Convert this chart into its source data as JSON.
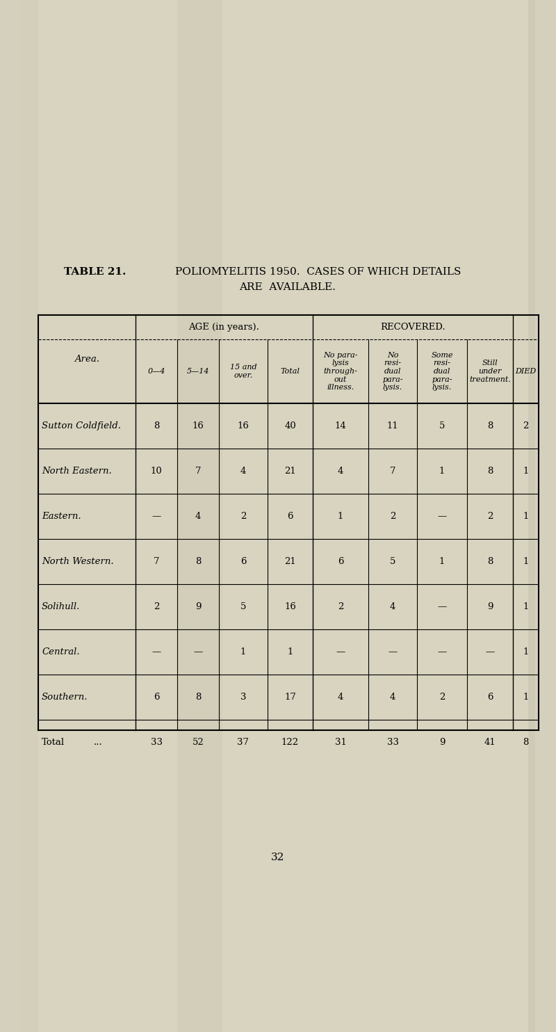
{
  "page_number": "32",
  "bg_color": "#d5d0be",
  "page_color": "#cdc8b4",
  "title_bold": "TABLE 21.",
  "title_rest": "POLIOMYELITIS 1950.  CASES OF WHICH DETAILS",
  "title_line2": "ARE  AVAILABLE.",
  "header1_age": "AGE (in years).",
  "header1_recovered": "RECOVERED.",
  "area_label": "Area.",
  "col_headers": [
    "0—4",
    "5—14",
    "15 and\nover.",
    "Total",
    "No para-\nlysis\nthrough-\nout\nillness.",
    "No\nresi-\ndual\npara-\nlysis.",
    "Some\nresi-\ndual\npara-\nlysis.",
    "Still\nunder\ntreatment.",
    "DIED"
  ],
  "rows": [
    [
      "Sutton Coldfield.",
      "8",
      "16",
      "16",
      "40",
      "14",
      "11",
      "5",
      "8",
      "2"
    ],
    [
      "North Eastern.",
      "10",
      "7",
      "4",
      "21",
      "4",
      "7",
      "1",
      "8",
      "1"
    ],
    [
      "Eastern.",
      "—",
      "4",
      "2",
      "6",
      "1",
      "2",
      "—",
      "2",
      "1"
    ],
    [
      "North Western.",
      "7",
      "8",
      "6",
      "21",
      "6",
      "5",
      "1",
      "8",
      "1"
    ],
    [
      "Solihull.",
      "2",
      "9",
      "5",
      "16",
      "2",
      "4",
      "—",
      "9",
      "1"
    ],
    [
      "Central.",
      "—",
      "—",
      "1",
      "1",
      "—",
      "—",
      "—",
      "—",
      "1"
    ],
    [
      "Southern.",
      "6",
      "8",
      "3",
      "17",
      "4",
      "4",
      "2",
      "6",
      "1"
    ],
    [
      "Total",
      "...",
      "33",
      "52",
      "37",
      "122",
      "31",
      "33",
      "9",
      "41",
      "8"
    ]
  ]
}
